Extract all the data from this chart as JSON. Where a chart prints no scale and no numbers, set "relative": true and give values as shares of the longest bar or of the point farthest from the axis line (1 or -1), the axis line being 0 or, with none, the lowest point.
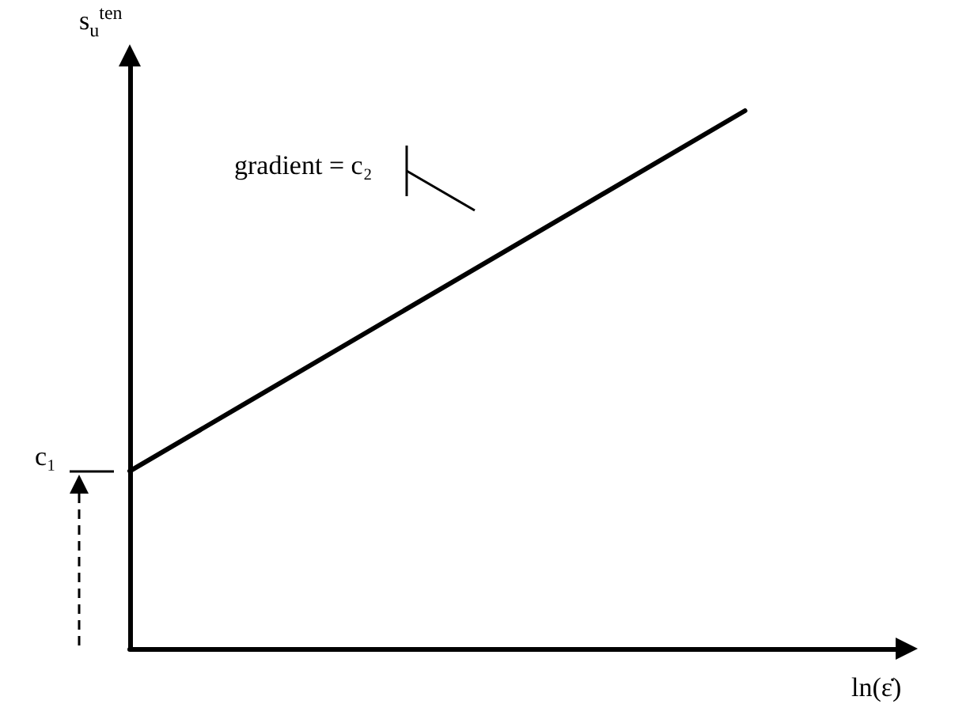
{
  "chart_data": {
    "type": "line",
    "relative": true,
    "categories": [
      null,
      null,
      null,
      null,
      null,
      null
    ],
    "series": [
      {
        "color": "#000000",
        "values": [
          0.33,
          null,
          null,
          null,
          1,
          null
        ]
      }
    ],
    "xlabel": "ln(ε̇)",
    "ylabel": "s$_{u}$$^{ten}$",
    "annotations": [
      "c₁",
      "gradient = c₂"
    ],
    "marker": "none",
    "line_style": "solid"
  }
}
